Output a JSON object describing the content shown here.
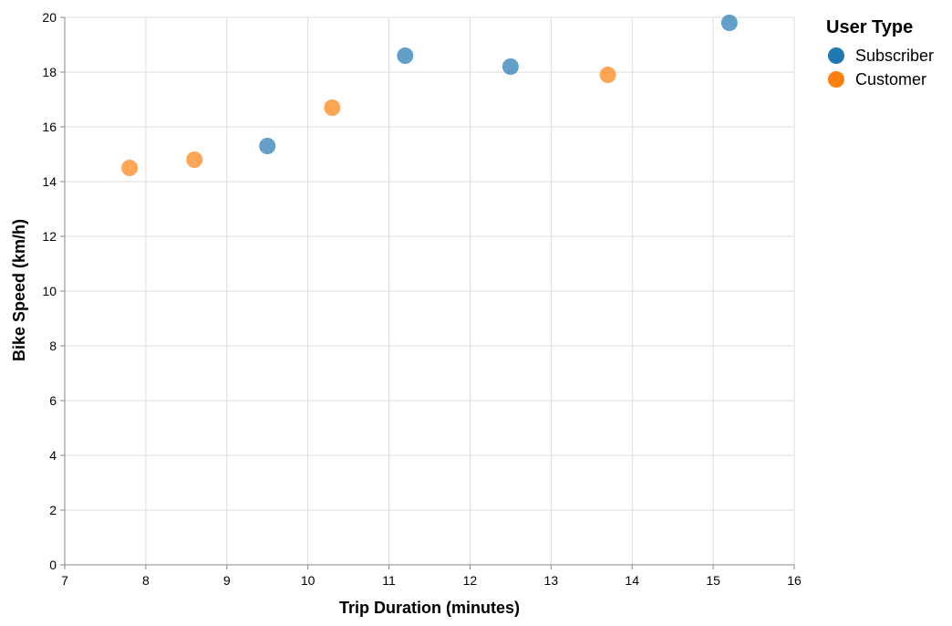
{
  "chart_data": {
    "type": "scatter",
    "xlabel": "Trip Duration (minutes)",
    "ylabel": "Bike Speed (km/h)",
    "xlim": [
      7,
      16
    ],
    "ylim": [
      0,
      20
    ],
    "xticks": [
      "7",
      "8",
      "9",
      "10",
      "11",
      "12",
      "13",
      "14",
      "15",
      "16"
    ],
    "yticks": [
      "0",
      "2",
      "4",
      "6",
      "8",
      "10",
      "12",
      "14",
      "16",
      "18",
      "20"
    ],
    "grid": true,
    "legend": {
      "title": "User Type",
      "placement": "top-right",
      "entries": [
        {
          "label": "Subscriber",
          "color": "#1f77b4"
        },
        {
          "label": "Customer",
          "color": "#ff7f0e"
        }
      ]
    },
    "series": [
      {
        "name": "Subscriber",
        "color": "#1f77b4",
        "points": [
          {
            "x": 9.5,
            "y": 15.3
          },
          {
            "x": 11.2,
            "y": 18.6
          },
          {
            "x": 12.5,
            "y": 18.2
          },
          {
            "x": 15.2,
            "y": 19.8
          }
        ]
      },
      {
        "name": "Customer",
        "color": "#ff7f0e",
        "points": [
          {
            "x": 7.8,
            "y": 14.5
          },
          {
            "x": 8.6,
            "y": 14.8
          },
          {
            "x": 10.3,
            "y": 16.7
          },
          {
            "x": 13.7,
            "y": 17.9
          }
        ]
      }
    ]
  }
}
